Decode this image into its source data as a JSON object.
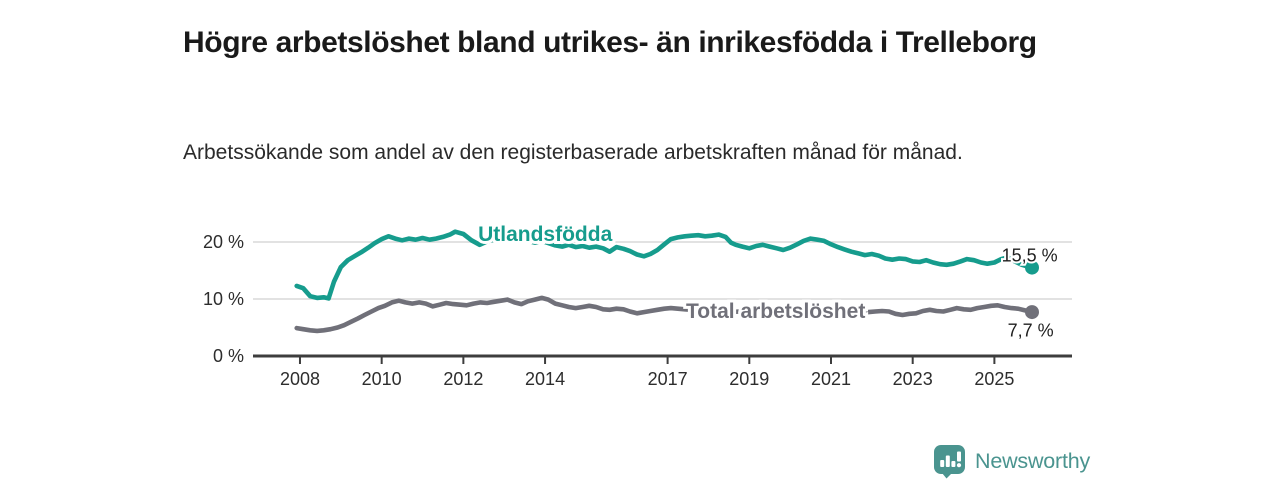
{
  "chart_data": {
    "type": "line",
    "title": "Högre arbetslöshet bland utrikes- än inrikesfödda i Trelleborg",
    "subtitle": "Arbetssökande som andel av den registerbaserade arbetskraften månad för månad.",
    "unit": "%",
    "grid": true,
    "legend_position": "inline-labels",
    "x_range": [
      2006.85,
      2026.9
    ],
    "x_ticks": [
      "2008",
      "2010",
      "2012",
      "2014",
      "2017",
      "2019",
      "2021",
      "2023",
      "2025"
    ],
    "y_range": [
      0,
      24.7
    ],
    "y_ticks": [
      {
        "value": 0,
        "label": "0 %"
      },
      {
        "value": 10,
        "label": "10 %"
      },
      {
        "value": 20,
        "label": "20 %"
      }
    ],
    "axis_color": "#3d3d3d",
    "grid_color": "#d8d8d8",
    "tick_label_color": "#2d2d2d",
    "end_label_color": "#1f1f1f",
    "series": [
      {
        "name": "Utlandsfödda",
        "color": "#169c8d",
        "end_value": 15.5,
        "end_label": "15,5 %",
        "inline_label_pos": [
          2012.36,
          20.15
        ],
        "end_label_pos": [
          2026.55,
          16.55
        ],
        "points": [
          [
            2007.92,
            12.3
          ],
          [
            2008.08,
            11.9
          ],
          [
            2008.25,
            10.5
          ],
          [
            2008.42,
            10.2
          ],
          [
            2008.58,
            10.3
          ],
          [
            2008.7,
            10.1
          ],
          [
            2008.83,
            13.0
          ],
          [
            2009.0,
            15.6
          ],
          [
            2009.17,
            16.8
          ],
          [
            2009.33,
            17.5
          ],
          [
            2009.5,
            18.2
          ],
          [
            2009.67,
            19.0
          ],
          [
            2009.83,
            19.8
          ],
          [
            2010.0,
            20.5
          ],
          [
            2010.17,
            21.0
          ],
          [
            2010.33,
            20.6
          ],
          [
            2010.5,
            20.3
          ],
          [
            2010.67,
            20.6
          ],
          [
            2010.83,
            20.4
          ],
          [
            2011.0,
            20.7
          ],
          [
            2011.17,
            20.4
          ],
          [
            2011.33,
            20.6
          ],
          [
            2011.5,
            20.9
          ],
          [
            2011.67,
            21.3
          ],
          [
            2011.8,
            21.8
          ],
          [
            2012.0,
            21.4
          ],
          [
            2012.2,
            20.3
          ],
          [
            2012.4,
            19.5
          ],
          [
            2012.58,
            20.1
          ],
          [
            2012.75,
            20.4
          ],
          [
            2012.92,
            20.2
          ],
          [
            2013.08,
            20.5
          ],
          [
            2013.25,
            20.3
          ],
          [
            2013.42,
            20.6
          ],
          [
            2013.58,
            20.2
          ],
          [
            2013.75,
            19.9
          ],
          [
            2013.92,
            20.2
          ],
          [
            2014.08,
            19.8
          ],
          [
            2014.25,
            19.4
          ],
          [
            2014.42,
            19.2
          ],
          [
            2014.58,
            19.5
          ],
          [
            2014.75,
            19.1
          ],
          [
            2014.92,
            19.3
          ],
          [
            2015.08,
            19.0
          ],
          [
            2015.25,
            19.2
          ],
          [
            2015.42,
            18.9
          ],
          [
            2015.58,
            18.3
          ],
          [
            2015.75,
            19.1
          ],
          [
            2015.92,
            18.8
          ],
          [
            2016.08,
            18.4
          ],
          [
            2016.25,
            17.8
          ],
          [
            2016.42,
            17.5
          ],
          [
            2016.58,
            17.9
          ],
          [
            2016.75,
            18.6
          ],
          [
            2016.92,
            19.6
          ],
          [
            2017.08,
            20.5
          ],
          [
            2017.25,
            20.8
          ],
          [
            2017.42,
            21.0
          ],
          [
            2017.58,
            21.1
          ],
          [
            2017.75,
            21.2
          ],
          [
            2017.92,
            21.0
          ],
          [
            2018.08,
            21.1
          ],
          [
            2018.25,
            21.3
          ],
          [
            2018.42,
            20.9
          ],
          [
            2018.55,
            19.9
          ],
          [
            2018.67,
            19.5
          ],
          [
            2018.83,
            19.2
          ],
          [
            2019.0,
            18.9
          ],
          [
            2019.17,
            19.3
          ],
          [
            2019.33,
            19.5
          ],
          [
            2019.5,
            19.2
          ],
          [
            2019.67,
            18.9
          ],
          [
            2019.83,
            18.6
          ],
          [
            2020.0,
            19.0
          ],
          [
            2020.17,
            19.6
          ],
          [
            2020.33,
            20.2
          ],
          [
            2020.5,
            20.6
          ],
          [
            2020.67,
            20.4
          ],
          [
            2020.83,
            20.2
          ],
          [
            2021.0,
            19.6
          ],
          [
            2021.17,
            19.1
          ],
          [
            2021.33,
            18.7
          ],
          [
            2021.5,
            18.3
          ],
          [
            2021.67,
            18.0
          ],
          [
            2021.83,
            17.7
          ],
          [
            2022.0,
            17.9
          ],
          [
            2022.17,
            17.6
          ],
          [
            2022.33,
            17.1
          ],
          [
            2022.5,
            16.9
          ],
          [
            2022.67,
            17.1
          ],
          [
            2022.83,
            17.0
          ],
          [
            2023.0,
            16.6
          ],
          [
            2023.17,
            16.5
          ],
          [
            2023.33,
            16.8
          ],
          [
            2023.5,
            16.4
          ],
          [
            2023.67,
            16.1
          ],
          [
            2023.83,
            16.0
          ],
          [
            2024.0,
            16.2
          ],
          [
            2024.17,
            16.6
          ],
          [
            2024.33,
            17.0
          ],
          [
            2024.5,
            16.8
          ],
          [
            2024.67,
            16.4
          ],
          [
            2024.83,
            16.2
          ],
          [
            2025.0,
            16.4
          ],
          [
            2025.17,
            17.0
          ],
          [
            2025.33,
            17.3
          ],
          [
            2025.5,
            16.6
          ],
          [
            2025.67,
            16.0
          ],
          [
            2025.92,
            15.5
          ]
        ]
      },
      {
        "name": "Total arbetslöshet",
        "color": "#707079",
        "end_value": 7.7,
        "end_label": "7,7 %",
        "inline_label_pos": [
          2017.45,
          6.7
        ],
        "end_label_pos": [
          2026.45,
          3.45
        ],
        "points": [
          [
            2007.92,
            4.9
          ],
          [
            2008.08,
            4.7
          ],
          [
            2008.25,
            4.5
          ],
          [
            2008.42,
            4.4
          ],
          [
            2008.58,
            4.5
          ],
          [
            2008.75,
            4.7
          ],
          [
            2008.92,
            5.0
          ],
          [
            2009.08,
            5.4
          ],
          [
            2009.25,
            6.0
          ],
          [
            2009.42,
            6.6
          ],
          [
            2009.58,
            7.2
          ],
          [
            2009.75,
            7.8
          ],
          [
            2009.92,
            8.4
          ],
          [
            2010.08,
            8.8
          ],
          [
            2010.25,
            9.4
          ],
          [
            2010.42,
            9.7
          ],
          [
            2010.58,
            9.4
          ],
          [
            2010.75,
            9.2
          ],
          [
            2010.92,
            9.4
          ],
          [
            2011.08,
            9.2
          ],
          [
            2011.25,
            8.7
          ],
          [
            2011.42,
            9.0
          ],
          [
            2011.58,
            9.3
          ],
          [
            2011.75,
            9.1
          ],
          [
            2011.92,
            9.0
          ],
          [
            2012.08,
            8.9
          ],
          [
            2012.25,
            9.2
          ],
          [
            2012.42,
            9.4
          ],
          [
            2012.58,
            9.3
          ],
          [
            2012.75,
            9.5
          ],
          [
            2012.92,
            9.7
          ],
          [
            2013.08,
            9.9
          ],
          [
            2013.25,
            9.4
          ],
          [
            2013.42,
            9.1
          ],
          [
            2013.58,
            9.6
          ],
          [
            2013.75,
            9.9
          ],
          [
            2013.92,
            10.2
          ],
          [
            2014.08,
            9.9
          ],
          [
            2014.25,
            9.2
          ],
          [
            2014.42,
            8.9
          ],
          [
            2014.58,
            8.6
          ],
          [
            2014.75,
            8.4
          ],
          [
            2014.92,
            8.6
          ],
          [
            2015.08,
            8.8
          ],
          [
            2015.25,
            8.6
          ],
          [
            2015.42,
            8.2
          ],
          [
            2015.58,
            8.1
          ],
          [
            2015.75,
            8.3
          ],
          [
            2015.92,
            8.2
          ],
          [
            2016.08,
            7.8
          ],
          [
            2016.25,
            7.5
          ],
          [
            2016.42,
            7.7
          ],
          [
            2016.58,
            7.9
          ],
          [
            2016.75,
            8.1
          ],
          [
            2016.92,
            8.3
          ],
          [
            2017.08,
            8.4
          ],
          [
            2017.25,
            8.3
          ],
          [
            2017.42,
            8.2
          ],
          [
            2017.58,
            8.1
          ],
          [
            2017.75,
            8.0
          ],
          [
            2017.92,
            8.1
          ],
          [
            2018.08,
            8.0
          ],
          [
            2018.25,
            7.9
          ],
          [
            2018.42,
            7.8
          ],
          [
            2018.58,
            7.7
          ],
          [
            2018.75,
            7.8
          ],
          [
            2018.92,
            7.7
          ],
          [
            2019.08,
            7.8
          ],
          [
            2019.25,
            7.9
          ],
          [
            2019.42,
            8.0
          ],
          [
            2019.58,
            7.9
          ],
          [
            2019.75,
            7.8
          ],
          [
            2019.92,
            7.9
          ],
          [
            2020.08,
            8.0
          ],
          [
            2020.25,
            8.1
          ],
          [
            2020.42,
            8.0
          ],
          [
            2020.58,
            7.9
          ],
          [
            2020.75,
            7.8
          ],
          [
            2020.92,
            7.9
          ],
          [
            2021.08,
            7.8
          ],
          [
            2021.25,
            7.7
          ],
          [
            2021.42,
            7.8
          ],
          [
            2021.58,
            7.7
          ],
          [
            2021.75,
            7.6
          ],
          [
            2021.92,
            7.7
          ],
          [
            2022.08,
            7.8
          ],
          [
            2022.25,
            7.9
          ],
          [
            2022.42,
            7.8
          ],
          [
            2022.58,
            7.4
          ],
          [
            2022.75,
            7.2
          ],
          [
            2022.92,
            7.4
          ],
          [
            2023.08,
            7.5
          ],
          [
            2023.25,
            7.9
          ],
          [
            2023.42,
            8.1
          ],
          [
            2023.58,
            7.9
          ],
          [
            2023.75,
            7.8
          ],
          [
            2023.92,
            8.1
          ],
          [
            2024.08,
            8.4
          ],
          [
            2024.25,
            8.2
          ],
          [
            2024.42,
            8.1
          ],
          [
            2024.58,
            8.4
          ],
          [
            2024.75,
            8.6
          ],
          [
            2024.92,
            8.8
          ],
          [
            2025.08,
            8.9
          ],
          [
            2025.25,
            8.6
          ],
          [
            2025.42,
            8.4
          ],
          [
            2025.58,
            8.3
          ],
          [
            2025.75,
            8.0
          ],
          [
            2025.92,
            7.7
          ]
        ]
      }
    ]
  },
  "branding": {
    "logo_text": "Newsworthy",
    "logo_color": "#4a948f",
    "logo_icon": "bar-chart-speech-bubble-icon"
  }
}
